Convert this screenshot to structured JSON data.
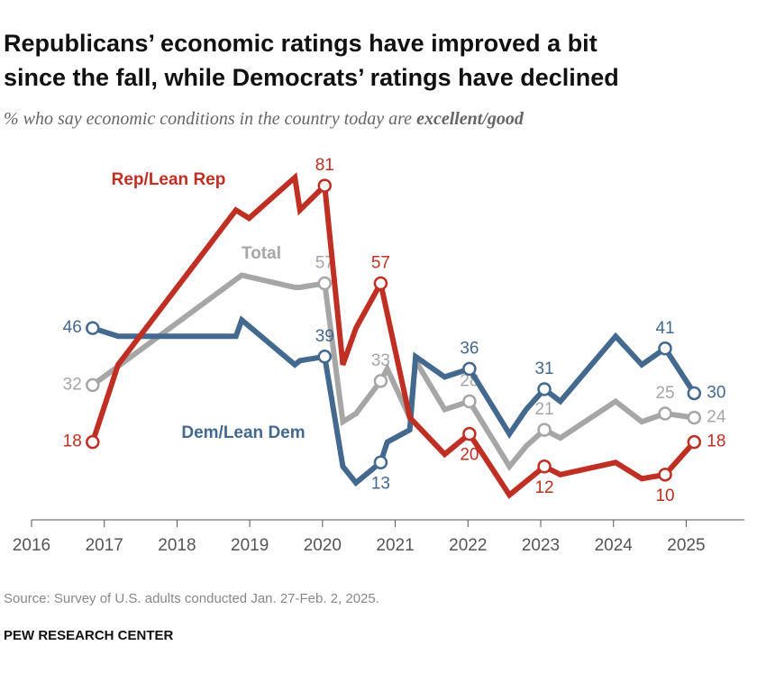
{
  "chart_data": {
    "type": "line",
    "title": [
      "Republicans’ economic ratings have improved a bit",
      "since the fall, while Democrats’ ratings have declined"
    ],
    "subtitle": {
      "text": "% who say economic conditions in the country today are ",
      "emphasis": "excellent/good"
    },
    "source": "Source: Survey of U.S. adults conducted Jan. 27-Feb. 2, 2025.",
    "credit": "PEW RESEARCH CENTER",
    "xlim": [
      2016,
      2025.8
    ],
    "xticks": [
      2016,
      2017,
      2018,
      2019,
      2020,
      2021,
      2022,
      2023,
      2024,
      2025
    ],
    "ylim": [
      0,
      85
    ],
    "series": [
      {
        "name": "Total",
        "color": "#a6a6a6",
        "x": [
          2016.84,
          2018.89,
          2019.62,
          2019.69,
          2020.03,
          2020.28,
          2020.46,
          2020.8,
          2020.89,
          2021.2,
          2021.28,
          2021.68,
          2022.02,
          2022.57,
          2022.8,
          2023.05,
          2023.27,
          2024.03,
          2024.39,
          2024.71,
          2025.11
        ],
        "values": [
          32,
          59,
          56,
          56,
          57,
          23,
          25,
          33,
          36,
          24,
          38,
          26,
          28,
          12,
          17,
          21,
          19,
          28,
          23,
          25,
          24
        ],
        "markers": [
          0,
          4,
          7,
          12,
          15,
          19,
          20
        ]
      },
      {
        "name": "Dem/Lean Dem",
        "color": "#44698e",
        "x": [
          2016.84,
          2017.19,
          2018.81,
          2018.89,
          2019.62,
          2019.69,
          2020.03,
          2020.28,
          2020.46,
          2020.8,
          2020.89,
          2021.2,
          2021.28,
          2021.68,
          2022.02,
          2022.57,
          2022.8,
          2023.05,
          2023.27,
          2024.03,
          2024.39,
          2024.71,
          2025.11
        ],
        "values": [
          46,
          44,
          44,
          48,
          37,
          38,
          39,
          12,
          8,
          13,
          18,
          21,
          39,
          34,
          36,
          20,
          26,
          31,
          28,
          44,
          37,
          41,
          30
        ],
        "markers": [
          0,
          6,
          9,
          14,
          17,
          21,
          22
        ]
      },
      {
        "name": "Rep/Lean Rep",
        "color": "#bf2f24",
        "x": [
          2016.84,
          2017.19,
          2018.81,
          2018.99,
          2019.62,
          2019.69,
          2020.03,
          2020.28,
          2020.46,
          2020.8,
          2021.2,
          2021.68,
          2022.02,
          2022.57,
          2023.05,
          2023.27,
          2024.03,
          2024.39,
          2024.71,
          2025.11
        ],
        "values": [
          18,
          37,
          75,
          73,
          83,
          75,
          81,
          37,
          46,
          57,
          24,
          15,
          20,
          5,
          12,
          10,
          13,
          9,
          10,
          18
        ],
        "markers": [
          0,
          6,
          9,
          12,
          14,
          18,
          19
        ]
      }
    ]
  }
}
